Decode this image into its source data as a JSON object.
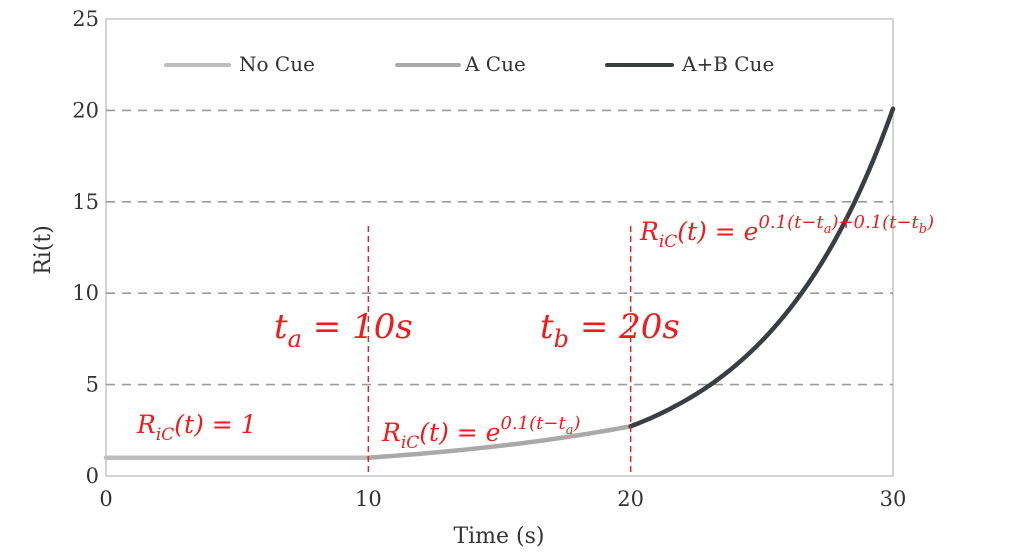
{
  "chart_data": {
    "type": "line",
    "title": "",
    "xlabel": "Time (s)",
    "ylabel": "Ri(t)",
    "xlim": [
      0,
      30
    ],
    "ylim": [
      0,
      25
    ],
    "xticks": [
      "0",
      "10",
      "20",
      "30"
    ],
    "yticks": [
      "0",
      "5",
      "10",
      "15",
      "20",
      "25"
    ],
    "grid": "horizontal dashed",
    "legend_position": "top",
    "series": [
      {
        "name": "No Cue",
        "color": "#bdbdbd",
        "x": [
          0,
          2,
          4,
          6,
          8,
          10
        ],
        "y": [
          1,
          1,
          1,
          1,
          1,
          1
        ]
      },
      {
        "name": "A Cue",
        "color": "#a9a9a9",
        "x": [
          10,
          12,
          14,
          16,
          18,
          20
        ],
        "y": [
          1,
          1.22,
          1.49,
          1.82,
          2.23,
          2.72
        ]
      },
      {
        "name": "A+B Cue",
        "color": "#3a3d42",
        "x": [
          20,
          21,
          22,
          23,
          24,
          25,
          26,
          27,
          28,
          29,
          30
        ],
        "y": [
          2.72,
          3.32,
          4.06,
          4.95,
          6.05,
          7.39,
          9.03,
          11.02,
          13.46,
          16.44,
          20.09
        ]
      }
    ],
    "markers": [
      {
        "x": 10,
        "label": "t_a = 10s"
      },
      {
        "x": 20,
        "label": "t_b = 20s"
      }
    ],
    "annotations": [
      {
        "base": "R",
        "sub": "iC",
        "rest": "(t) = 1"
      },
      {
        "base": "R",
        "sub": "iC",
        "rest": "(t) = e",
        "sup": "0.1(t−t",
        "sup_sub": "a",
        "sup_end": ")"
      },
      {
        "base": "R",
        "sub": "iC",
        "rest": "(t) = e",
        "sup": "0.1(t−t",
        "sup_sub": "a",
        "sup_mid": ")+0.1(t−t",
        "sup_sub2": "b",
        "sup_end": ")"
      }
    ]
  }
}
